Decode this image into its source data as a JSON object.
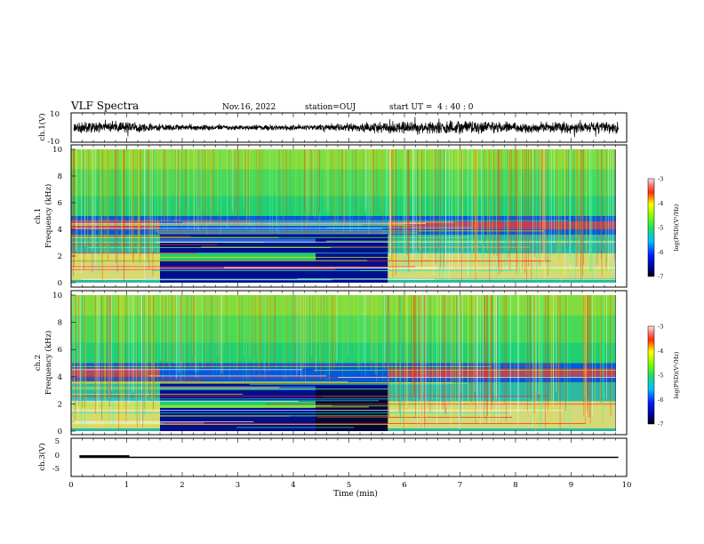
{
  "header": {
    "title": "VLF Spectra",
    "date": "Nov.16, 2022",
    "station": "station=OUJ",
    "start": "start UT =  4 : 40 : 0"
  },
  "chart_data": [
    {
      "type": "line",
      "name": "waveform-ch1",
      "ylabel": "ch.1(V)",
      "ylim": [
        -10,
        10
      ],
      "yticks": [
        "10",
        "-10"
      ],
      "xlim": [
        0,
        10
      ],
      "amplitude_profile": [
        [
          0,
          3.0
        ],
        [
          1.0,
          3.6
        ],
        [
          1.6,
          2.0
        ],
        [
          3.0,
          1.6
        ],
        [
          4.4,
          1.8
        ],
        [
          5.8,
          3.8
        ],
        [
          7.0,
          4.2
        ],
        [
          8.0,
          3.0
        ],
        [
          9.0,
          3.8
        ],
        [
          9.85,
          3.6
        ]
      ]
    },
    {
      "type": "heatmap",
      "name": "spectrogram-ch1",
      "ylabel": "ch.1\nFrequency (kHz)",
      "ylim": [
        0,
        10
      ],
      "yticks": [
        "0",
        "2",
        "4",
        "6",
        "8",
        "10"
      ],
      "xlim": [
        0,
        10
      ],
      "colorbar": {
        "label": "log(PSD)(V²/Hz)",
        "range": [
          -7,
          -3
        ],
        "ticks": [
          "-3",
          "-4",
          "-5",
          "-6",
          "-7"
        ]
      }
    },
    {
      "type": "heatmap",
      "name": "spectrogram-ch2",
      "ylabel": "ch.2\nFrequency (kHz)",
      "ylim": [
        0,
        10
      ],
      "yticks": [
        "0",
        "2",
        "4",
        "6",
        "8",
        "10"
      ],
      "xlim": [
        0,
        10
      ],
      "colorbar": {
        "label": "log(PSD)(V²/Hz)",
        "range": [
          -7,
          -3
        ],
        "ticks": [
          "-3",
          "-4",
          "-5",
          "-6",
          "-7"
        ]
      }
    },
    {
      "type": "line",
      "name": "waveform-ch3",
      "ylabel": "ch.3(V)",
      "ylim": [
        -5,
        5
      ],
      "yticks": [
        "5",
        "0",
        "-5"
      ],
      "xlim": [
        0,
        10
      ],
      "xlabel": "Time (min)",
      "xticks": [
        "0",
        "1",
        "2",
        "3",
        "4",
        "5",
        "6",
        "7",
        "8",
        "9",
        "10"
      ],
      "segments": [
        {
          "x": [
            0.15,
            1.05
          ],
          "y": 0.3
        },
        {
          "x": [
            0.15,
            9.85
          ],
          "y": 0.0
        }
      ]
    }
  ]
}
